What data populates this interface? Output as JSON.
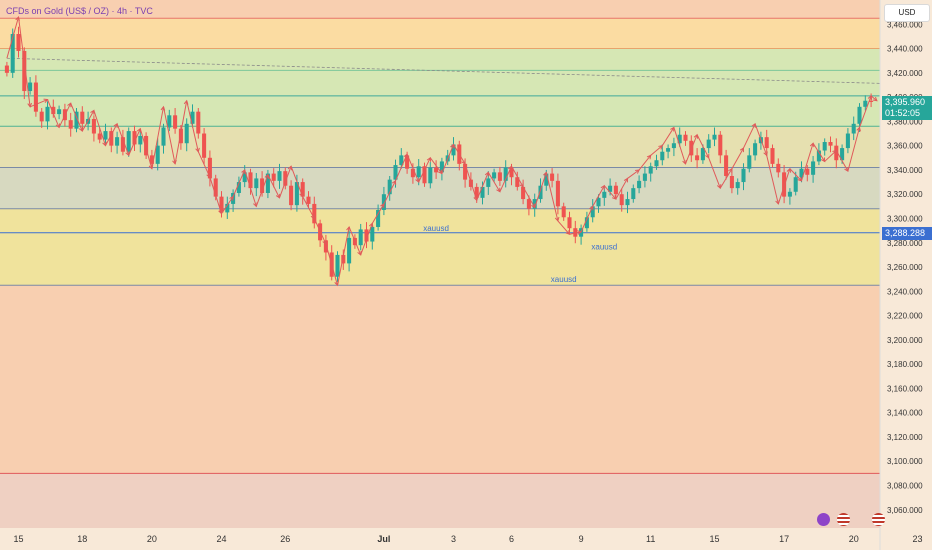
{
  "header": {
    "title": "CFDs on Gold (US$ / OZ) · 4h · TVC",
    "currency": "USD"
  },
  "price_labels": {
    "last_price": "3,395.960",
    "countdown": "01:52:05",
    "level_price": "3,288.288"
  },
  "colors": {
    "up": "#26a69a",
    "down": "#ef5350",
    "arrow": "#e05a5a",
    "level_blue": "#3b6fd1"
  },
  "chart_data": {
    "type": "candlestick",
    "title": "CFDs on Gold (US$ / OZ) · 4h · TVC",
    "ylim": [
      3045,
      3480
    ],
    "y_ticks": [
      3060,
      3080,
      3100,
      3120,
      3140,
      3160,
      3180,
      3200,
      3220,
      3240,
      3260,
      3280,
      3300,
      3320,
      3340,
      3360,
      3380,
      3400,
      3420,
      3440,
      3460
    ],
    "x_ticks": [
      {
        "label": "15",
        "bar": 2
      },
      {
        "label": "18",
        "bar": 13
      },
      {
        "label": "20",
        "bar": 25
      },
      {
        "label": "24",
        "bar": 37
      },
      {
        "label": "26",
        "bar": 48
      },
      {
        "label": "Jul",
        "bar": 65
      },
      {
        "label": "3",
        "bar": 77
      },
      {
        "label": "6",
        "bar": 87
      },
      {
        "label": "9",
        "bar": 99
      },
      {
        "label": "11",
        "bar": 111
      },
      {
        "label": "15",
        "bar": 122
      },
      {
        "label": "17",
        "bar": 134
      },
      {
        "label": "20",
        "bar": 146
      },
      {
        "label": "23",
        "bar": 157
      }
    ],
    "zones": [
      {
        "from": 3440,
        "to": 3465,
        "color": "#fbdca2"
      },
      {
        "from": 3376,
        "to": 3440,
        "color": "#d6e7b4"
      },
      {
        "from": 3342,
        "to": 3376,
        "color": "#e6e0b0"
      },
      {
        "from": 3308,
        "to": 3342,
        "color": "#d7d9c0"
      },
      {
        "from": 3245,
        "to": 3308,
        "color": "#f0e39c"
      },
      {
        "from": 3045,
        "to": 3090,
        "color": "#efd0c2"
      }
    ],
    "levels": [
      {
        "price": 3465,
        "color": "#e8756b"
      },
      {
        "price": 3440,
        "color": "#e8a36b"
      },
      {
        "price": 3422,
        "color": "#7cc79a"
      },
      {
        "price": 3401,
        "color": "#3fa89a"
      },
      {
        "price": 3376,
        "color": "#4db393"
      },
      {
        "price": 3342,
        "color": "#7a8aa6"
      },
      {
        "price": 3308,
        "color": "#7a8aa6"
      },
      {
        "price": 3288.288,
        "color": "#3b6fd1"
      },
      {
        "price": 3245,
        "color": "#7a8aa6"
      },
      {
        "price": 3090,
        "color": "#e05a5a"
      }
    ],
    "trendline": {
      "from": [
        0,
        3432
      ],
      "to": [
        160,
        3410
      ]
    },
    "annotations": [
      {
        "text": "xauusd",
        "bar": 74,
        "price": 3288
      },
      {
        "text": "xauusd",
        "bar": 103,
        "price": 3273
      },
      {
        "text": "xauusd",
        "bar": 96,
        "price": 3246
      }
    ],
    "closes": [
      3420,
      3452,
      3438,
      3405,
      3412,
      3388,
      3380,
      3392,
      3386,
      3390,
      3381,
      3374,
      3388,
      3378,
      3382,
      3370,
      3365,
      3372,
      3360,
      3367,
      3355,
      3372,
      3361,
      3368,
      3352,
      3345,
      3360,
      3375,
      3385,
      3374,
      3362,
      3378,
      3388,
      3370,
      3350,
      3333,
      3318,
      3305,
      3312,
      3321,
      3330,
      3338,
      3325,
      3333,
      3321,
      3337,
      3331,
      3339,
      3327,
      3311,
      3330,
      3318,
      3312,
      3296,
      3282,
      3272,
      3252,
      3270,
      3263,
      3284,
      3278,
      3291,
      3281,
      3293,
      3307,
      3320,
      3332,
      3344,
      3352,
      3341,
      3334,
      3343,
      3329,
      3342,
      3338,
      3347,
      3352,
      3361,
      3345,
      3332,
      3326,
      3317,
      3326,
      3333,
      3338,
      3331,
      3342,
      3334,
      3326,
      3316,
      3308,
      3316,
      3327,
      3337,
      3331,
      3310,
      3301,
      3292,
      3285,
      3292,
      3301,
      3310,
      3317,
      3322,
      3327,
      3320,
      3311,
      3316,
      3325,
      3331,
      3337,
      3343,
      3348,
      3355,
      3358,
      3362,
      3369,
      3364,
      3352,
      3348,
      3358,
      3365,
      3369,
      3352,
      3335,
      3325,
      3330,
      3341,
      3352,
      3362,
      3367,
      3358,
      3345,
      3338,
      3318,
      3322,
      3334,
      3341,
      3336,
      3347,
      3356,
      3363,
      3360,
      3348,
      3358,
      3370,
      3378,
      3392,
      3397,
      3396
    ],
    "last_price": 3395.96,
    "level_price": 3288.288,
    "swing_points": [
      [
        0,
        3432
      ],
      [
        2,
        3466
      ],
      [
        4,
        3392
      ],
      [
        7,
        3398
      ],
      [
        9,
        3375
      ],
      [
        11,
        3395
      ],
      [
        13,
        3372
      ],
      [
        15,
        3389
      ],
      [
        17,
        3360
      ],
      [
        19,
        3378
      ],
      [
        21,
        3352
      ],
      [
        23,
        3374
      ],
      [
        25,
        3341
      ],
      [
        27,
        3392
      ],
      [
        29,
        3345
      ],
      [
        31,
        3397
      ],
      [
        33,
        3355
      ],
      [
        35,
        3334
      ],
      [
        37,
        3304
      ],
      [
        39,
        3318
      ],
      [
        41,
        3340
      ],
      [
        43,
        3310
      ],
      [
        45,
        3336
      ],
      [
        47,
        3317
      ],
      [
        49,
        3343
      ],
      [
        51,
        3318
      ],
      [
        53,
        3300
      ],
      [
        55,
        3279
      ],
      [
        57,
        3245
      ],
      [
        59,
        3293
      ],
      [
        61,
        3270
      ],
      [
        63,
        3296
      ],
      [
        65,
        3312
      ],
      [
        67,
        3331
      ],
      [
        69,
        3353
      ],
      [
        71,
        3330
      ],
      [
        73,
        3350
      ],
      [
        75,
        3337
      ],
      [
        77,
        3361
      ],
      [
        79,
        3345
      ],
      [
        81,
        3315
      ],
      [
        83,
        3338
      ],
      [
        85,
        3322
      ],
      [
        87,
        3343
      ],
      [
        89,
        3326
      ],
      [
        91,
        3309
      ],
      [
        93,
        3338
      ],
      [
        95,
        3298
      ],
      [
        97,
        3287
      ],
      [
        99,
        3289
      ],
      [
        101,
        3310
      ],
      [
        103,
        3327
      ],
      [
        105,
        3316
      ],
      [
        107,
        3333
      ],
      [
        109,
        3340
      ],
      [
        111,
        3352
      ],
      [
        113,
        3360
      ],
      [
        115,
        3375
      ],
      [
        117,
        3345
      ],
      [
        119,
        3369
      ],
      [
        121,
        3350
      ],
      [
        123,
        3325
      ],
      [
        125,
        3341
      ],
      [
        127,
        3358
      ],
      [
        129,
        3378
      ],
      [
        131,
        3352
      ],
      [
        133,
        3312
      ],
      [
        135,
        3341
      ],
      [
        137,
        3331
      ],
      [
        139,
        3362
      ],
      [
        141,
        3347
      ],
      [
        143,
        3356
      ],
      [
        145,
        3339
      ],
      [
        147,
        3375
      ],
      [
        149,
        3401
      ],
      [
        150,
        3397
      ]
    ]
  }
}
